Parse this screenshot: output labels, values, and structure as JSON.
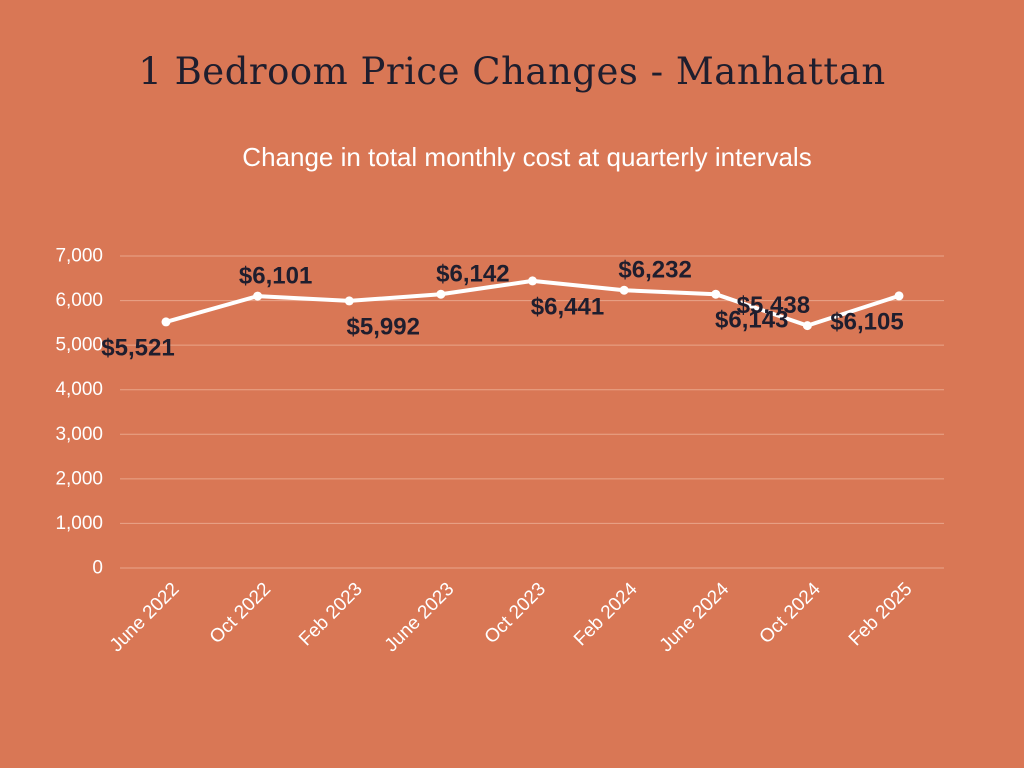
{
  "chart_data": {
    "type": "line",
    "title": "1 Bedroom Price Changes - Manhattan",
    "subtitle": "Change in total monthly cost at quarterly intervals",
    "xlabel": "",
    "ylabel": "",
    "categories": [
      "June 2022",
      "Oct 2022",
      "Feb 2023",
      "June 2023",
      "Oct 2023",
      "Feb 2024",
      "June 2024",
      "Oct 2024",
      "Feb 2025"
    ],
    "series": [
      {
        "values": [
          5521,
          6101,
          5992,
          6142,
          6441,
          6232,
          6143,
          5438,
          6105
        ],
        "data_labels": [
          "$5,521",
          "$6,101",
          "$5,992",
          "$6,142",
          "$6,441",
          "$6,232",
          "$6,143",
          "$5,438",
          "$6,105"
        ],
        "color": "#FFFFFF"
      }
    ],
    "ylim": [
      0,
      7000
    ],
    "yticks": [
      "0",
      "1,000",
      "2,000",
      "3,000",
      "4,000",
      "5,000",
      "6,000",
      "7,000"
    ],
    "grid": true,
    "legend": "none"
  },
  "colors": {
    "background": "#D97755",
    "line": "#FFFFFF",
    "data_label": "#1F1E2E",
    "title": "#1F1E2E",
    "axis_text": "#FFFFFF",
    "grid": "#E9A58A"
  }
}
